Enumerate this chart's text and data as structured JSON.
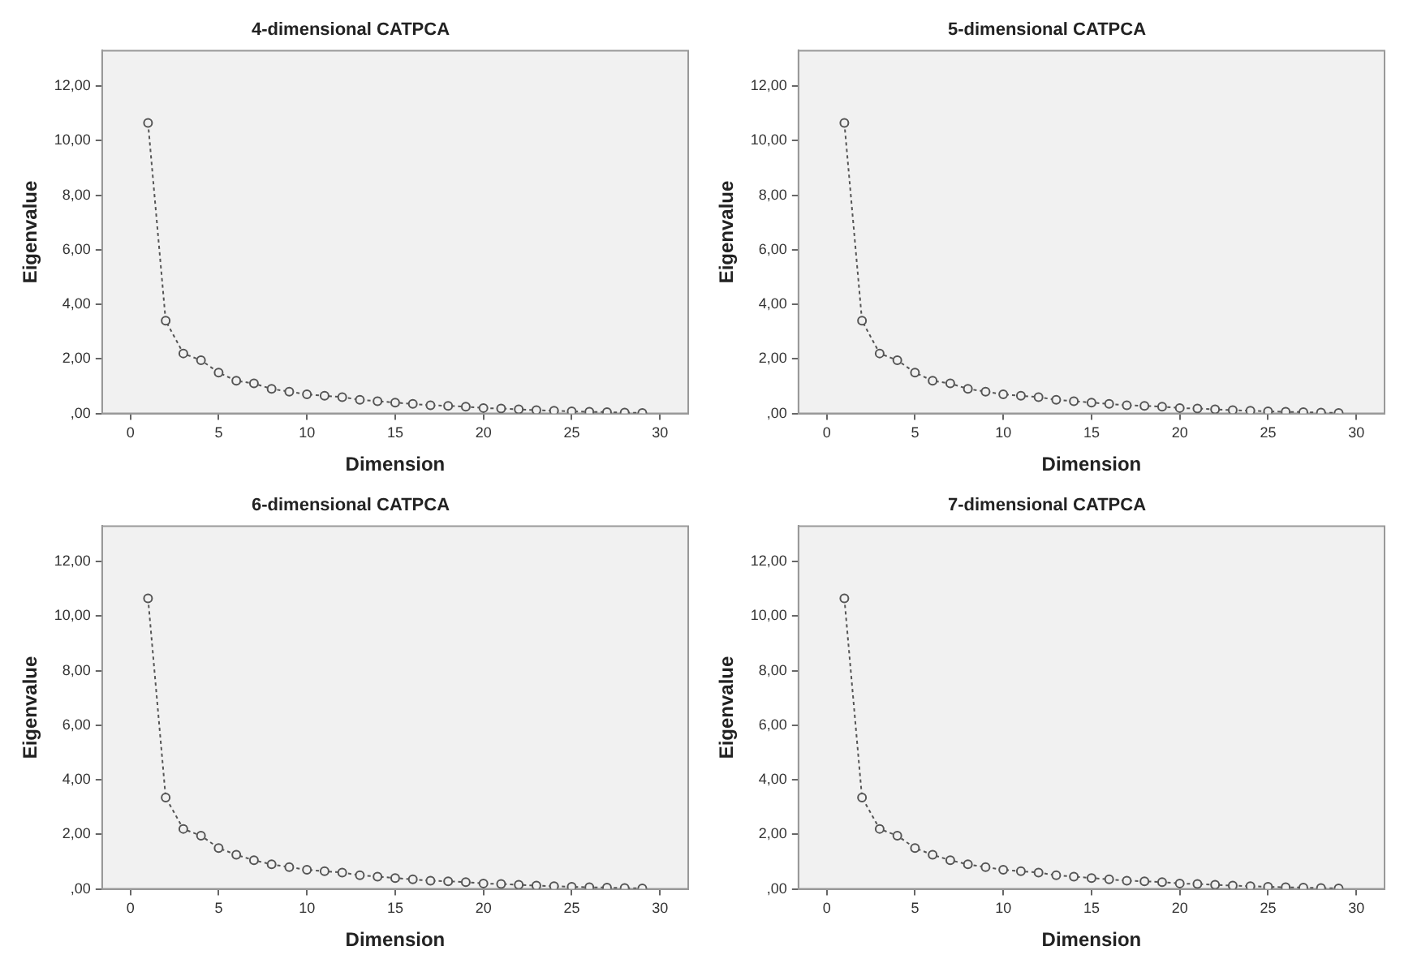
{
  "chart_data": [
    {
      "type": "line",
      "title": "4-dimensional CATPCA",
      "xlabel": "Dimension",
      "ylabel": "Eigenvalue",
      "xlim": [
        -1.6,
        31.6
      ],
      "ylim": [
        0,
        13.3
      ],
      "xticks": [
        0,
        5,
        10,
        15,
        20,
        25,
        30
      ],
      "yticks": [
        {
          "value": 0,
          "label": ",00"
        },
        {
          "value": 2,
          "label": "2,00"
        },
        {
          "value": 4,
          "label": "4,00"
        },
        {
          "value": 6,
          "label": "6,00"
        },
        {
          "value": 8,
          "label": "8,00"
        },
        {
          "value": 10,
          "label": "10,00"
        },
        {
          "value": 12,
          "label": "12,00"
        }
      ],
      "grid": false,
      "legend": false,
      "marker": "circle",
      "line_style": "dotted",
      "series": [
        {
          "color": "#555555",
          "x": [
            1,
            2,
            3,
            4,
            5,
            6,
            7,
            8,
            9,
            10,
            11,
            12,
            13,
            14,
            15,
            16,
            17,
            18,
            19,
            20,
            21,
            22,
            23,
            24,
            25,
            26,
            27,
            28,
            29
          ],
          "values": [
            10.65,
            3.4,
            2.2,
            1.95,
            1.5,
            1.2,
            1.1,
            0.9,
            0.8,
            0.7,
            0.65,
            0.6,
            0.5,
            0.45,
            0.4,
            0.35,
            0.3,
            0.28,
            0.25,
            0.2,
            0.18,
            0.15,
            0.12,
            0.1,
            0.08,
            0.06,
            0.05,
            0.03,
            0.02
          ]
        }
      ]
    },
    {
      "type": "line",
      "title": "5-dimensional CATPCA",
      "xlabel": "Dimension",
      "ylabel": "Eigenvalue",
      "xlim": [
        -1.6,
        31.6
      ],
      "ylim": [
        0,
        13.3
      ],
      "xticks": [
        0,
        5,
        10,
        15,
        20,
        25,
        30
      ],
      "yticks": [
        {
          "value": 0,
          "label": ",00"
        },
        {
          "value": 2,
          "label": "2,00"
        },
        {
          "value": 4,
          "label": "4,00"
        },
        {
          "value": 6,
          "label": "6,00"
        },
        {
          "value": 8,
          "label": "8,00"
        },
        {
          "value": 10,
          "label": "10,00"
        },
        {
          "value": 12,
          "label": "12,00"
        }
      ],
      "grid": false,
      "legend": false,
      "marker": "circle",
      "line_style": "dotted",
      "series": [
        {
          "color": "#555555",
          "x": [
            1,
            2,
            3,
            4,
            5,
            6,
            7,
            8,
            9,
            10,
            11,
            12,
            13,
            14,
            15,
            16,
            17,
            18,
            19,
            20,
            21,
            22,
            23,
            24,
            25,
            26,
            27,
            28,
            29
          ],
          "values": [
            10.65,
            3.4,
            2.2,
            1.95,
            1.5,
            1.2,
            1.1,
            0.9,
            0.8,
            0.7,
            0.65,
            0.6,
            0.5,
            0.45,
            0.4,
            0.35,
            0.3,
            0.28,
            0.25,
            0.2,
            0.18,
            0.15,
            0.12,
            0.1,
            0.08,
            0.06,
            0.05,
            0.03,
            0.02
          ]
        }
      ]
    },
    {
      "type": "line",
      "title": "6-dimensional CATPCA",
      "xlabel": "Dimension",
      "ylabel": "Eigenvalue",
      "xlim": [
        -1.6,
        31.6
      ],
      "ylim": [
        0,
        13.3
      ],
      "xticks": [
        0,
        5,
        10,
        15,
        20,
        25,
        30
      ],
      "yticks": [
        {
          "value": 0,
          "label": ",00"
        },
        {
          "value": 2,
          "label": "2,00"
        },
        {
          "value": 4,
          "label": "4,00"
        },
        {
          "value": 6,
          "label": "6,00"
        },
        {
          "value": 8,
          "label": "8,00"
        },
        {
          "value": 10,
          "label": "10,00"
        },
        {
          "value": 12,
          "label": "12,00"
        }
      ],
      "grid": false,
      "legend": false,
      "marker": "circle",
      "line_style": "dotted",
      "series": [
        {
          "color": "#555555",
          "x": [
            1,
            2,
            3,
            4,
            5,
            6,
            7,
            8,
            9,
            10,
            11,
            12,
            13,
            14,
            15,
            16,
            17,
            18,
            19,
            20,
            21,
            22,
            23,
            24,
            25,
            26,
            27,
            28,
            29
          ],
          "values": [
            10.65,
            3.35,
            2.2,
            1.95,
            1.5,
            1.25,
            1.05,
            0.9,
            0.8,
            0.7,
            0.65,
            0.6,
            0.5,
            0.45,
            0.4,
            0.35,
            0.3,
            0.28,
            0.25,
            0.2,
            0.18,
            0.15,
            0.12,
            0.1,
            0.08,
            0.06,
            0.05,
            0.03,
            0.02
          ]
        }
      ]
    },
    {
      "type": "line",
      "title": "7-dimensional CATPCA",
      "xlabel": "Dimension",
      "ylabel": "Eigenvalue",
      "xlim": [
        -1.6,
        31.6
      ],
      "ylim": [
        0,
        13.3
      ],
      "xticks": [
        0,
        5,
        10,
        15,
        20,
        25,
        30
      ],
      "yticks": [
        {
          "value": 0,
          "label": ",00"
        },
        {
          "value": 2,
          "label": "2,00"
        },
        {
          "value": 4,
          "label": "4,00"
        },
        {
          "value": 6,
          "label": "6,00"
        },
        {
          "value": 8,
          "label": "8,00"
        },
        {
          "value": 10,
          "label": "10,00"
        },
        {
          "value": 12,
          "label": "12,00"
        }
      ],
      "grid": false,
      "legend": false,
      "marker": "circle",
      "line_style": "dotted",
      "series": [
        {
          "color": "#555555",
          "x": [
            1,
            2,
            3,
            4,
            5,
            6,
            7,
            8,
            9,
            10,
            11,
            12,
            13,
            14,
            15,
            16,
            17,
            18,
            19,
            20,
            21,
            22,
            23,
            24,
            25,
            26,
            27,
            28,
            29
          ],
          "values": [
            10.65,
            3.35,
            2.2,
            1.95,
            1.5,
            1.25,
            1.05,
            0.9,
            0.8,
            0.7,
            0.65,
            0.6,
            0.5,
            0.45,
            0.4,
            0.35,
            0.3,
            0.28,
            0.25,
            0.2,
            0.18,
            0.15,
            0.12,
            0.1,
            0.08,
            0.06,
            0.05,
            0.03,
            0.02
          ]
        }
      ]
    }
  ]
}
